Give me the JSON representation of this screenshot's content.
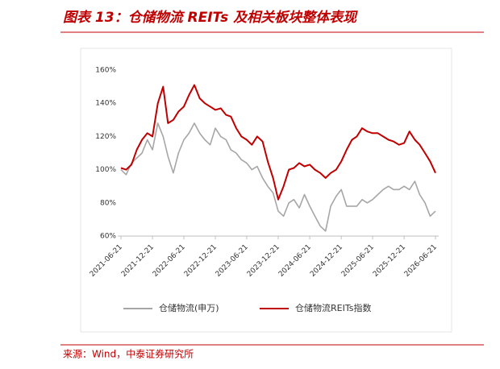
{
  "chart_data": {
    "type": "line",
    "title": "图表 13：仓储物流 REITs 及相关板块整体表现",
    "source": "来源：Wind，中泰证券研究所",
    "x": [
      "2021-06-21",
      "2021-07-21",
      "2021-08-21",
      "2021-09-21",
      "2021-10-21",
      "2021-11-21",
      "2021-12-21",
      "2022-01-21",
      "2022-02-21",
      "2022-03-21",
      "2022-04-21",
      "2022-05-21",
      "2022-06-21",
      "2022-07-21",
      "2022-08-21",
      "2022-09-21",
      "2022-10-21",
      "2022-11-21",
      "2022-12-21",
      "2023-01-21",
      "2023-02-21",
      "2023-03-21",
      "2023-04-21",
      "2023-05-21",
      "2023-06-21",
      "2023-07-21",
      "2023-08-21",
      "2023-09-21",
      "2023-10-21",
      "2023-11-21",
      "2023-12-21",
      "2024-01-21",
      "2024-02-21",
      "2024-03-21",
      "2024-04-21",
      "2024-05-21",
      "2024-06-21",
      "2024-07-21",
      "2024-08-21",
      "2024-09-21",
      "2024-10-21",
      "2024-11-21",
      "2024-12-21",
      "2025-01-21",
      "2025-02-21",
      "2025-03-21",
      "2025-04-21",
      "2025-05-21",
      "2025-06-21",
      "2025-07-21",
      "2025-08-21",
      "2025-09-21",
      "2025-10-21",
      "2025-11-21",
      "2025-12-21",
      "2026-01-21",
      "2026-02-21",
      "2026-03-21",
      "2026-04-21",
      "2026-05-21",
      "2026-06-21"
    ],
    "series": [
      {
        "name": "仓储物流(申万)",
        "color": "#a6a6a6",
        "values": [
          100,
          97,
          104,
          107,
          110,
          118,
          112,
          128,
          120,
          108,
          98,
          110,
          118,
          122,
          128,
          122,
          118,
          115,
          125,
          120,
          118,
          112,
          110,
          106,
          104,
          100,
          102,
          95,
          90,
          86,
          75,
          72,
          80,
          82,
          77,
          85,
          78,
          72,
          66,
          63,
          78,
          84,
          88,
          78,
          78,
          78,
          82,
          80,
          82,
          85,
          88,
          90,
          88,
          88,
          90,
          88,
          93,
          85,
          80,
          72,
          75
        ]
      },
      {
        "name": "仓储物流REITs指数",
        "color": "#c00000",
        "values": [
          101,
          100,
          103,
          112,
          118,
          122,
          120,
          140,
          150,
          128,
          130,
          135,
          138,
          145,
          151,
          143,
          140,
          138,
          136,
          137,
          133,
          132,
          125,
          120,
          118,
          115,
          120,
          117,
          105,
          95,
          82,
          90,
          100,
          101,
          104,
          102,
          103,
          100,
          98,
          95,
          98,
          100,
          105,
          112,
          118,
          120,
          125,
          123,
          122,
          122,
          120,
          118,
          117,
          115,
          116,
          123,
          118,
          115,
          110,
          105,
          98
        ]
      }
    ],
    "xlim": [
      "2021-06-21",
      "2026-06-21"
    ],
    "xticks": [
      "2021-06-21",
      "2021-12-21",
      "2022-06-21",
      "2022-12-21",
      "2023-06-21",
      "2023-12-21",
      "2024-06-21",
      "2024-12-21",
      "2025-06-21",
      "2025-12-21",
      "2026-06-21"
    ],
    "ylim": [
      60,
      160
    ],
    "yticks": [
      {
        "value": 60,
        "label": "60%"
      },
      {
        "value": 80,
        "label": "80%"
      },
      {
        "value": 100,
        "label": "100%"
      },
      {
        "value": 120,
        "label": "120%"
      },
      {
        "value": 140,
        "label": "140%"
      },
      {
        "value": 160,
        "label": "160%"
      }
    ]
  }
}
